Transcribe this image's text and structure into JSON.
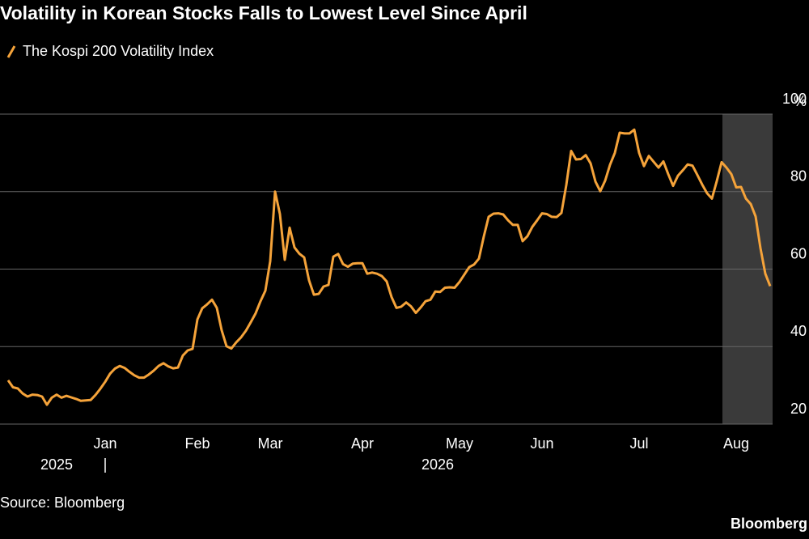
{
  "chart_data": {
    "type": "line",
    "title": "Volatility in Korean Stocks Falls to Lowest Level Since April",
    "source": "Source: Bloomberg",
    "brand": "Bloomberg",
    "y_unit": "%",
    "year_labels": [
      "2025",
      "2026"
    ],
    "categories": [
      null,
      null,
      null,
      null,
      null,
      null,
      null,
      null,
      null,
      null,
      null,
      null,
      null,
      null,
      null,
      null,
      null,
      null,
      null,
      null,
      "Jan",
      null,
      null,
      null,
      null,
      null,
      null,
      null,
      null,
      null,
      null,
      null,
      null,
      null,
      null,
      null,
      null,
      null,
      null,
      "Feb",
      null,
      null,
      null,
      null,
      null,
      null,
      null,
      null,
      null,
      null,
      null,
      null,
      null,
      null,
      "Mar",
      null,
      null,
      null,
      null,
      null,
      null,
      null,
      null,
      null,
      null,
      null,
      null,
      null,
      null,
      null,
      null,
      null,
      null,
      "Apr",
      null,
      null,
      null,
      null,
      null,
      null,
      null,
      null,
      null,
      null,
      null,
      null,
      null,
      null,
      null,
      null,
      null,
      null,
      null,
      "May",
      null,
      null,
      null,
      null,
      null,
      null,
      null,
      null,
      null,
      null,
      null,
      null,
      null,
      null,
      null,
      null,
      "Jun",
      null,
      null,
      null,
      null,
      null,
      null,
      null,
      null,
      null,
      null,
      null,
      null,
      null,
      null,
      null,
      null,
      null,
      null,
      null,
      "Jul",
      null,
      null,
      null,
      null,
      null,
      null,
      null,
      null,
      null,
      null,
      null,
      null,
      null,
      null,
      null,
      null,
      null,
      null,
      null,
      "Aug",
      null,
      null,
      null,
      null,
      null,
      null,
      null
    ],
    "series": [
      {
        "name": "The Kospi 200 Volatility Index",
        "color": "#f5a33a",
        "values": [
          31.3,
          29.5,
          29.2,
          27.9,
          27.1,
          27.6,
          27.5,
          27.1,
          25,
          26.8,
          27.6,
          26.8,
          27.3,
          26.9,
          26.5,
          26,
          26.1,
          26.2,
          27.5,
          29.1,
          30.9,
          33,
          34.3,
          35,
          34.5,
          33.5,
          32.6,
          32,
          32,
          32.8,
          33.8,
          35,
          35.7,
          34.9,
          34.4,
          34.6,
          37.7,
          39,
          39.4,
          47,
          49.9,
          50.9,
          52.1,
          50,
          44.2,
          40.1,
          39.5,
          41.1,
          42.4,
          44.1,
          46.3,
          48.6,
          51.7,
          54.4,
          62,
          80,
          74.2,
          62.4,
          70.7,
          65.6,
          64,
          63,
          57.1,
          53.4,
          53.6,
          55.5,
          55.9,
          63.2,
          63.9,
          61.3,
          60.6,
          61.4,
          61.5,
          61.5,
          58.8,
          59.1,
          58.8,
          58.2,
          56.8,
          52.8,
          50,
          50.3,
          51.4,
          50.4,
          48.7,
          50.1,
          51.7,
          52.1,
          54.2,
          54.1,
          55.2,
          55.3,
          55.2,
          56.7,
          58.6,
          60.5,
          61.2,
          62.7,
          68.4,
          73.5,
          74.3,
          74.4,
          74.1,
          72.6,
          71.4,
          71.4,
          67.2,
          68.5,
          70.9,
          72.6,
          74.4,
          74.2,
          73.5,
          73.4,
          74.5,
          81.7,
          90.5,
          88.3,
          88.4,
          89.4,
          87.3,
          82.6,
          80.1,
          82.8,
          86.9,
          90,
          95.2,
          95,
          95,
          96,
          90,
          86.6,
          89.2,
          87.7,
          86.2,
          87.8,
          84.5,
          81.5,
          84.1,
          85.5,
          87,
          86.7,
          84.3,
          81.8,
          79.6,
          78.2,
          82.7,
          87.6,
          86.2,
          84.5,
          81.1,
          81.2,
          78.2,
          76.8,
          73.6,
          65.4,
          58.8,
          55.6
        ]
      }
    ],
    "ylim": [
      20,
      100
    ],
    "yticks": [
      20,
      40,
      60,
      80,
      100
    ],
    "grid": true
  }
}
